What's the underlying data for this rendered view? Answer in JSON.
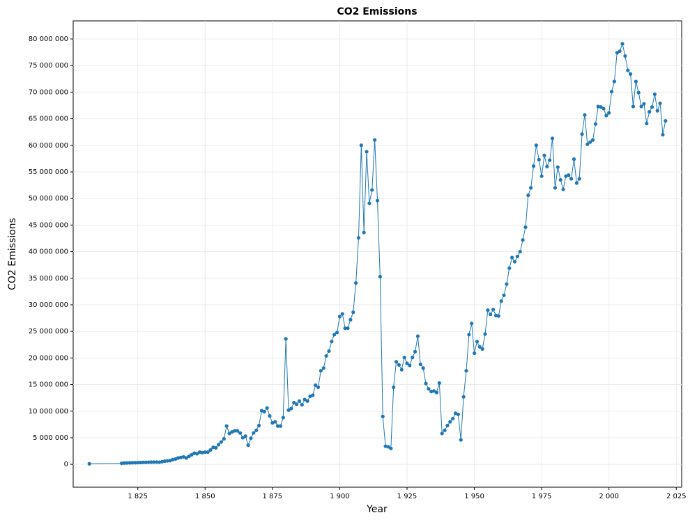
{
  "chart_data": {
    "type": "line",
    "title": "CO2 Emissions",
    "x_label": "Year",
    "y_label": "CO2 Emissions",
    "color": "#1f77b4",
    "grid": true,
    "xlim": [
      1801,
      2027
    ],
    "ylim": [
      -4300000,
      83400000
    ],
    "xticks": [
      {
        "value": 1825,
        "label": "1 825"
      },
      {
        "value": 1850,
        "label": "1 850"
      },
      {
        "value": 1875,
        "label": "1 875"
      },
      {
        "value": 1900,
        "label": "1 900"
      },
      {
        "value": 1925,
        "label": "1 925"
      },
      {
        "value": 1950,
        "label": "1 950"
      },
      {
        "value": 1975,
        "label": "1 975"
      },
      {
        "value": 2000,
        "label": "2 000"
      },
      {
        "value": 2025,
        "label": "2 025"
      }
    ],
    "yticks": [
      0,
      {
        "value": 5000000,
        "label": "5 000 000"
      },
      {
        "value": 10000000,
        "label": "10 000 000"
      },
      {
        "value": 15000000,
        "label": "15 000 000"
      },
      {
        "value": 20000000,
        "label": "20 000 000"
      },
      {
        "value": 25000000,
        "label": "25 000 000"
      },
      {
        "value": 30000000,
        "label": "30 000 000"
      },
      {
        "value": 35000000,
        "label": "35 000 000"
      },
      {
        "value": 40000000,
        "label": "40 000 000"
      },
      {
        "value": 45000000,
        "label": "45 000 000"
      },
      {
        "value": 50000000,
        "label": "50 000 000"
      },
      {
        "value": 55000000,
        "label": "55 000 000"
      },
      {
        "value": 60000000,
        "label": "60 000 000"
      },
      {
        "value": 65000000,
        "label": "65 000 000"
      },
      {
        "value": 70000000,
        "label": "70 000 000"
      },
      {
        "value": 75000000,
        "label": "75 000 000"
      },
      {
        "value": 80000000,
        "label": "80 000 000"
      }
    ],
    "x": [
      1807,
      1819,
      1820,
      1821,
      1822,
      1823,
      1824,
      1825,
      1826,
      1827,
      1828,
      1829,
      1830,
      1831,
      1832,
      1833,
      1834,
      1835,
      1836,
      1837,
      1838,
      1839,
      1840,
      1841,
      1842,
      1843,
      1844,
      1845,
      1846,
      1847,
      1848,
      1849,
      1850,
      1851,
      1852,
      1853,
      1854,
      1855,
      1856,
      1857,
      1858,
      1859,
      1860,
      1861,
      1862,
      1863,
      1864,
      1865,
      1866,
      1867,
      1868,
      1869,
      1870,
      1871,
      1872,
      1873,
      1874,
      1875,
      1876,
      1877,
      1878,
      1879,
      1880,
      1881,
      1882,
      1883,
      1884,
      1885,
      1886,
      1887,
      1888,
      1889,
      1890,
      1891,
      1892,
      1893,
      1894,
      1895,
      1896,
      1897,
      1898,
      1899,
      1900,
      1901,
      1902,
      1903,
      1904,
      1905,
      1906,
      1907,
      1908,
      1909,
      1910,
      1911,
      1912,
      1913,
      1914,
      1915,
      1916,
      1917,
      1918,
      1919,
      1920,
      1921,
      1922,
      1923,
      1924,
      1925,
      1926,
      1927,
      1928,
      1929,
      1930,
      1931,
      1932,
      1933,
      1934,
      1935,
      1936,
      1937,
      1938,
      1939,
      1940,
      1941,
      1942,
      1943,
      1944,
      1945,
      1946,
      1947,
      1948,
      1949,
      1950,
      1951,
      1952,
      1953,
      1954,
      1955,
      1956,
      1957,
      1958,
      1959,
      1960,
      1961,
      1962,
      1963,
      1964,
      1965,
      1966,
      1967,
      1968,
      1969,
      1970,
      1971,
      1972,
      1973,
      1974,
      1975,
      1976,
      1977,
      1978,
      1979,
      1980,
      1981,
      1982,
      1983,
      1984,
      1985,
      1986,
      1987,
      1988,
      1989,
      1990,
      1991,
      1992,
      1993,
      1994,
      1995,
      1996,
      1997,
      1998,
      1999,
      2000,
      2001,
      2002,
      2003,
      2004,
      2005,
      2006,
      2007,
      2008,
      2009,
      2010,
      2011,
      2012,
      2013,
      2014,
      2015,
      2016,
      2017,
      2018,
      2019,
      2020,
      2021
    ],
    "values": [
      100000,
      200000,
      250000,
      260000,
      280000,
      300000,
      310000,
      330000,
      350000,
      370000,
      380000,
      400000,
      410000,
      420000,
      440000,
      400000,
      500000,
      600000,
      650000,
      700000,
      900000,
      1000000,
      1200000,
      1300000,
      1400000,
      1200000,
      1500000,
      1800000,
      2100000,
      2000000,
      2300000,
      2200000,
      2300000,
      2300000,
      2700000,
      3200000,
      3100000,
      3700000,
      4200000,
      4800000,
      7200000,
      5800000,
      6100000,
      6300000,
      6300000,
      5900000,
      5000000,
      5300000,
      3600000,
      4900000,
      5900000,
      6400000,
      7300000,
      10100000,
      9900000,
      10600000,
      9100000,
      7800000,
      8000000,
      7200000,
      7200000,
      8800000,
      23600000,
      10200000,
      10500000,
      11600000,
      11300000,
      11900000,
      11200000,
      12200000,
      11900000,
      12800000,
      13000000,
      14900000,
      14500000,
      17600000,
      18100000,
      20400000,
      21300000,
      23100000,
      24400000,
      24800000,
      27800000,
      28300000,
      25600000,
      25600000,
      27200000,
      28600000,
      34100000,
      42600000,
      60000000,
      43600000,
      58800000,
      49100000,
      51600000,
      61000000,
      49600000,
      35300000,
      9000000,
      3400000,
      3300000,
      3000000,
      14500000,
      19300000,
      18700000,
      17800000,
      20100000,
      19000000,
      18600000,
      20100000,
      21200000,
      24100000,
      18800000,
      18100000,
      15200000,
      14200000,
      13700000,
      13800000,
      13500000,
      15300000,
      5800000,
      6400000,
      7300000,
      8000000,
      8600000,
      9600000,
      9400000,
      4600000,
      12700000,
      17600000,
      24400000,
      26500000,
      20900000,
      23100000,
      22100000,
      21700000,
      24500000,
      29000000,
      28200000,
      29100000,
      28000000,
      27900000,
      30700000,
      31800000,
      33900000,
      36900000,
      38900000,
      38100000,
      39100000,
      40000000,
      42200000,
      44600000,
      50600000,
      52000000,
      56100000,
      60000000,
      57300000,
      54200000,
      58100000,
      56000000,
      57200000,
      61300000,
      52000000,
      55900000,
      53500000,
      51700000,
      54200000,
      54400000,
      53700000,
      57400000,
      52900000,
      53700000,
      62100000,
      65700000,
      60200000,
      60600000,
      61000000,
      64000000,
      67300000,
      67200000,
      66900000,
      65600000,
      66100000,
      70100000,
      72000000,
      77400000,
      77700000,
      79100000,
      76800000,
      74100000,
      73400000,
      67300000,
      72000000,
      69900000,
      67300000,
      67800000,
      64100000,
      66300000,
      67200000,
      69600000,
      66500000,
      67900000,
      62000000,
      64600000
    ]
  }
}
